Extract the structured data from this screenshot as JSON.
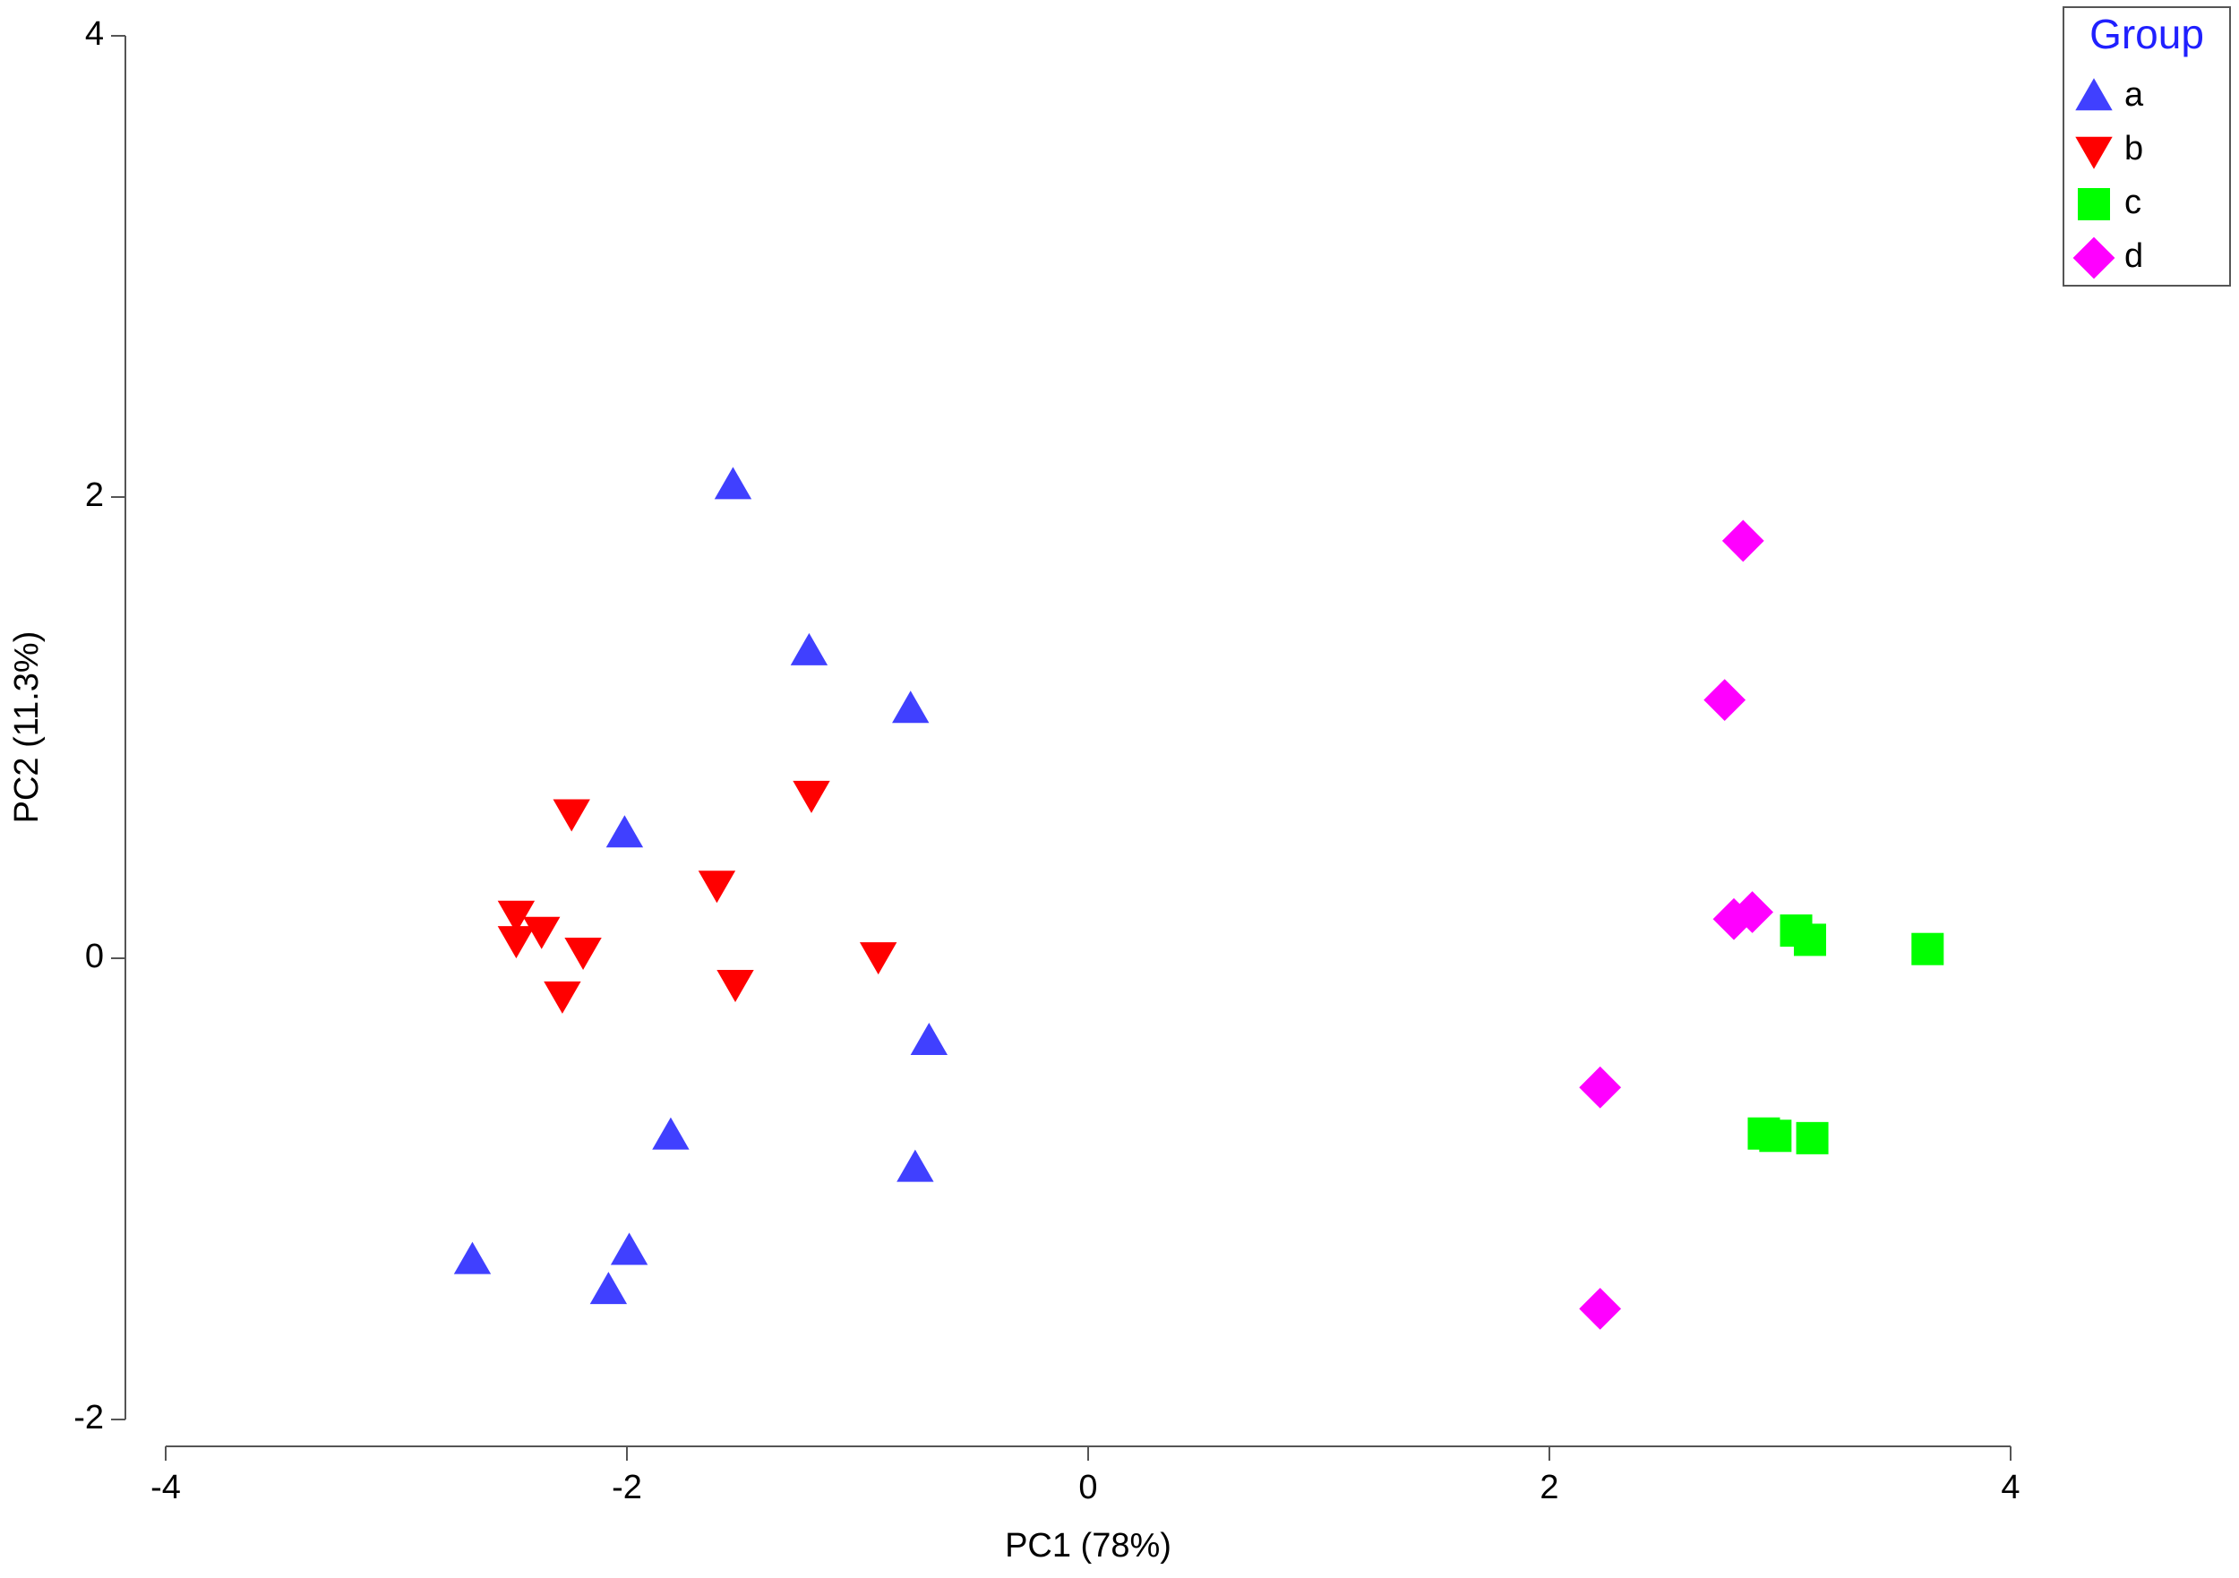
{
  "chart_data": {
    "type": "scatter",
    "x_label": "PC1 (78%)",
    "y_label": "PC2 (11.3%)",
    "legend_title": "Group",
    "legend_position": "upper right",
    "xlim": [
      -4,
      4
    ],
    "xticks": [
      -4,
      -2,
      0,
      2,
      4
    ],
    "ylim": [
      -2,
      4
    ],
    "yticks": [
      -2,
      0,
      2,
      4
    ],
    "series": [
      {
        "name": "a",
        "color": "#4040ff",
        "marker": "triangle-up",
        "x": [
          -1.54,
          -1.21,
          -0.77,
          -2.01,
          -0.69,
          -1.81,
          -0.75,
          -2.67,
          -1.99,
          -2.08
        ],
        "values": [
          2.05,
          1.33,
          1.08,
          0.54,
          -0.36,
          -0.77,
          -0.91,
          -1.31,
          -1.27,
          -1.44
        ]
      },
      {
        "name": "b",
        "color": "#ff0000",
        "marker": "triangle-down",
        "x": [
          -2.24,
          -1.2,
          -1.61,
          -2.48,
          -2.37,
          -2.48,
          -2.19,
          -0.91,
          -1.53,
          -2.28
        ],
        "values": [
          0.63,
          0.71,
          0.32,
          0.19,
          0.12,
          0.08,
          0.03,
          0.01,
          -0.11,
          -0.16
        ]
      },
      {
        "name": "c",
        "color": "#00ff00",
        "marker": "square",
        "x": [
          3.07,
          3.13,
          3.64,
          2.93,
          2.98,
          3.14
        ],
        "values": [
          0.12,
          0.08,
          0.04,
          -0.76,
          -0.77,
          -0.78
        ]
      },
      {
        "name": "d",
        "color": "#ff00ff",
        "marker": "diamond",
        "x": [
          2.84,
          2.76,
          2.8,
          2.88,
          2.22,
          2.22
        ],
        "values": [
          1.81,
          1.12,
          0.17,
          0.2,
          -0.56,
          -1.52
        ]
      }
    ]
  }
}
